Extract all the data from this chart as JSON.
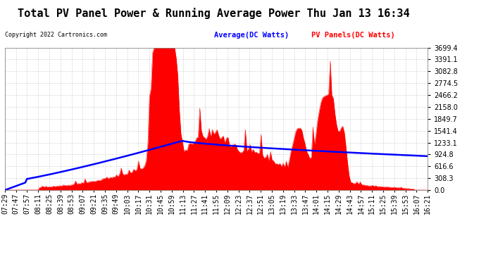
{
  "title": "Total PV Panel Power & Running Average Power Thu Jan 13 16:34",
  "copyright": "Copyright 2022 Cartronics.com",
  "legend_avg": "Average(DC Watts)",
  "legend_pv": "PV Panels(DC Watts)",
  "legend_avg_color": "#0000ff",
  "legend_pv_color": "#ff0000",
  "ymax": 3699.4,
  "yticks": [
    0.0,
    308.3,
    616.6,
    924.8,
    1233.1,
    1541.4,
    1849.7,
    2158.0,
    2466.2,
    2774.5,
    3082.8,
    3391.1,
    3699.4
  ],
  "background_color": "#ffffff",
  "grid_color": "#cccccc",
  "title_fontsize": 11,
  "tick_fontsize": 7,
  "x_labels": [
    "07:29",
    "07:47",
    "07:57",
    "08:11",
    "08:25",
    "08:39",
    "08:53",
    "09:07",
    "09:21",
    "09:35",
    "09:49",
    "10:03",
    "10:17",
    "10:31",
    "10:45",
    "10:59",
    "11:13",
    "11:27",
    "11:41",
    "11:55",
    "12:09",
    "12:23",
    "12:37",
    "12:51",
    "13:05",
    "13:19",
    "13:33",
    "13:47",
    "14:01",
    "14:15",
    "14:29",
    "14:43",
    "14:57",
    "15:11",
    "15:25",
    "15:39",
    "15:53",
    "16:07",
    "16:21"
  ],
  "pv_color": "#ff0000",
  "avg_color": "#0000ff",
  "figsize": [
    6.9,
    3.75
  ],
  "dpi": 100
}
